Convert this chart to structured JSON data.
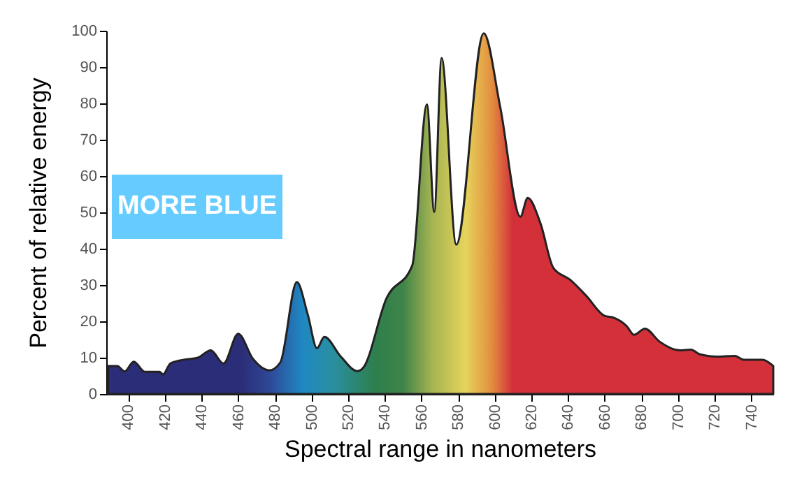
{
  "chart_data": {
    "type": "area",
    "xlabel": "Spectral range in nanometers",
    "ylabel": "Percent of relative energy",
    "annotations": [
      "MORE BLUE"
    ],
    "x": [
      389,
      394,
      398,
      403,
      409,
      417,
      419,
      423,
      430,
      438,
      445,
      452,
      460,
      468,
      477,
      483,
      492,
      498,
      503,
      507,
      516,
      525,
      528,
      541,
      555,
      563,
      567,
      571,
      579,
      594,
      603,
      614,
      618,
      625,
      632,
      641,
      650,
      660,
      665,
      672,
      676,
      682,
      690,
      701,
      707,
      712,
      721,
      731,
      736,
      746,
      752
    ],
    "series": [
      {
        "color": "#222222",
        "values": [
          7.7,
          7.7,
          6.2,
          8.9,
          6.1,
          6.1,
          5.4,
          8.4,
          9.4,
          10,
          12,
          8.4,
          16.6,
          9.7,
          6.5,
          8.7,
          30.8,
          21.8,
          12.6,
          15.7,
          10.3,
          6.3,
          7.1,
          26.4,
          35.4,
          79.7,
          50.1,
          92.5,
          41.1,
          99.3,
          79,
          48.8,
          54,
          46.9,
          34.7,
          31.5,
          27,
          21.5,
          21,
          18.7,
          16.3,
          18,
          14.4,
          12,
          12.2,
          10.9,
          10.3,
          10.5,
          9.4,
          9.4,
          7.7
        ]
      }
    ],
    "xlim": [
      388,
      752
    ],
    "xticks": [
      400,
      420,
      440,
      460,
      480,
      500,
      520,
      540,
      560,
      580,
      600,
      620,
      640,
      660,
      680,
      700,
      720,
      740
    ],
    "ylim": [
      0,
      100
    ],
    "yticks": [
      0,
      10,
      20,
      30,
      40,
      50,
      60,
      70,
      80,
      90,
      100
    ]
  }
}
